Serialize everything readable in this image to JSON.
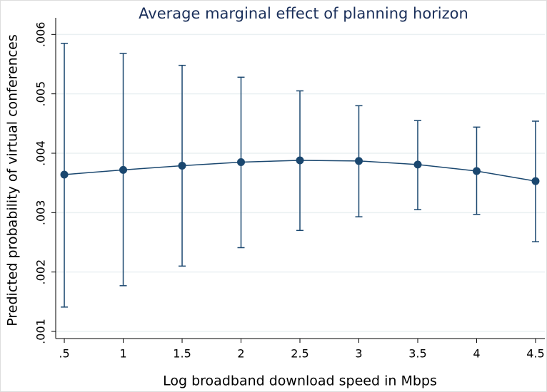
{
  "chart_data": {
    "type": "line-errorbar",
    "title": "Average marginal effect of planning horizon",
    "xlabel": "Log broadband download speed in Mbps",
    "ylabel": "Predicted probability of virtual conferences",
    "x": [
      0.5,
      1,
      1.5,
      2,
      2.5,
      3,
      3.5,
      4,
      4.5
    ],
    "series": [
      {
        "color": "#1a476f",
        "values": [
          0.00364,
          0.00372,
          0.00379,
          0.00385,
          0.00388,
          0.00387,
          0.00381,
          0.0037,
          0.00353
        ],
        "lower": [
          0.00141,
          0.00177,
          0.0021,
          0.00241,
          0.0027,
          0.00293,
          0.00305,
          0.00297,
          0.00251
        ],
        "upper": [
          0.00585,
          0.00568,
          0.00548,
          0.00528,
          0.00505,
          0.0048,
          0.00455,
          0.00444,
          0.00454
        ]
      }
    ],
    "xlim": [
      0.427,
      4.579
    ],
    "ylim": [
      0.00088,
      0.00628
    ],
    "xticks": [
      {
        "value": 0.5,
        "label": ".5"
      },
      1,
      1.5,
      2,
      2.5,
      3,
      3.5,
      4,
      4.5
    ],
    "yticks": [
      {
        "value": 0.001,
        "label": ".001"
      },
      {
        "value": 0.002,
        "label": ".002"
      },
      {
        "value": 0.003,
        "label": ".003"
      },
      {
        "value": 0.004,
        "label": ".004"
      },
      {
        "value": 0.005,
        "label": ".005"
      },
      {
        "value": 0.006,
        "label": ".006"
      }
    ],
    "grid": true
  }
}
